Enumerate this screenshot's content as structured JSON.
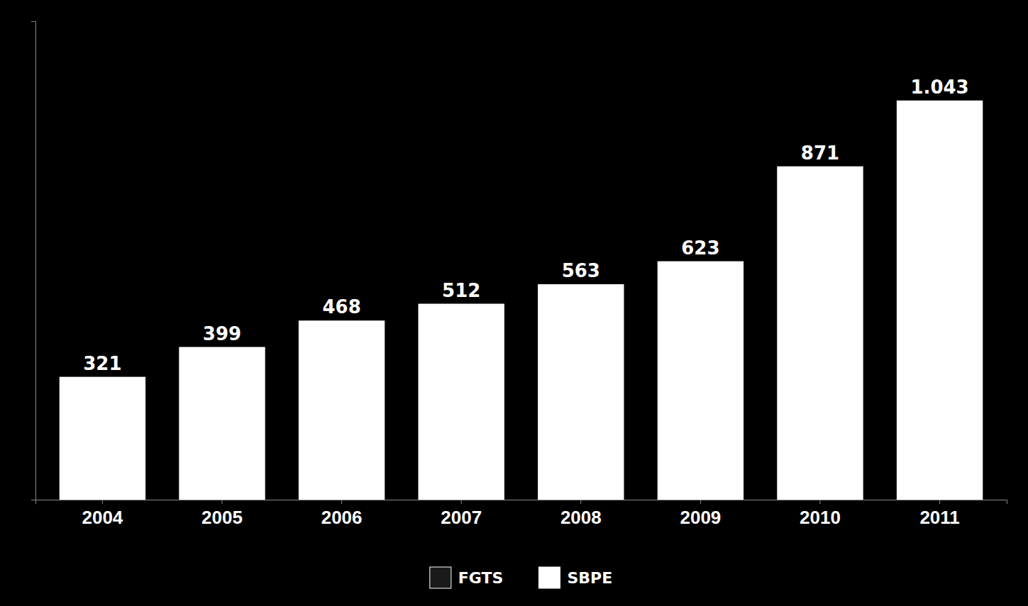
{
  "chart_data": {
    "type": "bar",
    "categories": [
      "2004",
      "2005",
      "2006",
      "2007",
      "2008",
      "2009",
      "2010",
      "2011"
    ],
    "values": [
      321,
      399,
      468,
      512,
      563,
      623,
      871,
      1043
    ],
    "value_labels": [
      "321",
      "399",
      "468",
      "512",
      "563",
      "623",
      "871",
      "1.043"
    ],
    "data_labels": true,
    "color": "#FFFFFF",
    "ylim": [
      0,
      1250
    ],
    "tick_labels": "x",
    "legend": "bottom",
    "legend_entries": [
      {
        "label": "FGTS",
        "color": "#1a1a1a"
      },
      {
        "label": "SBPE",
        "color": "#FFFFFF"
      }
    ]
  }
}
